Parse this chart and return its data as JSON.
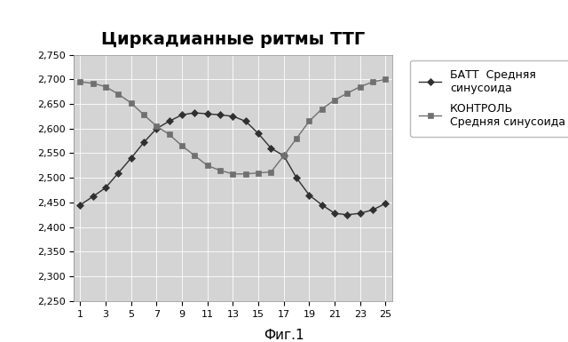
{
  "title": "Циркадианные ритмы ТТГ",
  "caption": "Фиг.1",
  "x": [
    1,
    2,
    3,
    4,
    5,
    6,
    7,
    8,
    9,
    10,
    11,
    12,
    13,
    14,
    15,
    16,
    17,
    18,
    19,
    20,
    21,
    22,
    23,
    24,
    25
  ],
  "batt": [
    2.445,
    2.462,
    2.48,
    2.51,
    2.54,
    2.572,
    2.6,
    2.615,
    2.628,
    2.632,
    2.63,
    2.628,
    2.625,
    2.615,
    2.59,
    2.56,
    2.545,
    2.5,
    2.465,
    2.445,
    2.428,
    2.425,
    2.428,
    2.435,
    2.448
  ],
  "control": [
    2.695,
    2.692,
    2.685,
    2.67,
    2.652,
    2.628,
    2.605,
    2.588,
    2.565,
    2.545,
    2.525,
    2.515,
    2.508,
    2.508,
    2.51,
    2.512,
    2.545,
    2.58,
    2.615,
    2.64,
    2.658,
    2.672,
    2.685,
    2.695,
    2.7
  ],
  "batt_label": "БАТТ  Средняя\nсинусоида",
  "control_label": "КОНТРОЛЬ\nСредняя синусоида",
  "batt_color": "#303030",
  "control_color": "#707070",
  "ylim_min": 2.25,
  "ylim_max": 2.75,
  "yticks": [
    2.25,
    2.3,
    2.35,
    2.4,
    2.45,
    2.5,
    2.55,
    2.6,
    2.65,
    2.7,
    2.75
  ],
  "xticks": [
    1,
    3,
    5,
    7,
    9,
    11,
    13,
    15,
    17,
    19,
    21,
    23,
    25
  ],
  "bg_color": "#d4d4d4",
  "fig_bg": "#ffffff",
  "title_fontsize": 14,
  "tick_fontsize": 8,
  "legend_fontsize": 9
}
